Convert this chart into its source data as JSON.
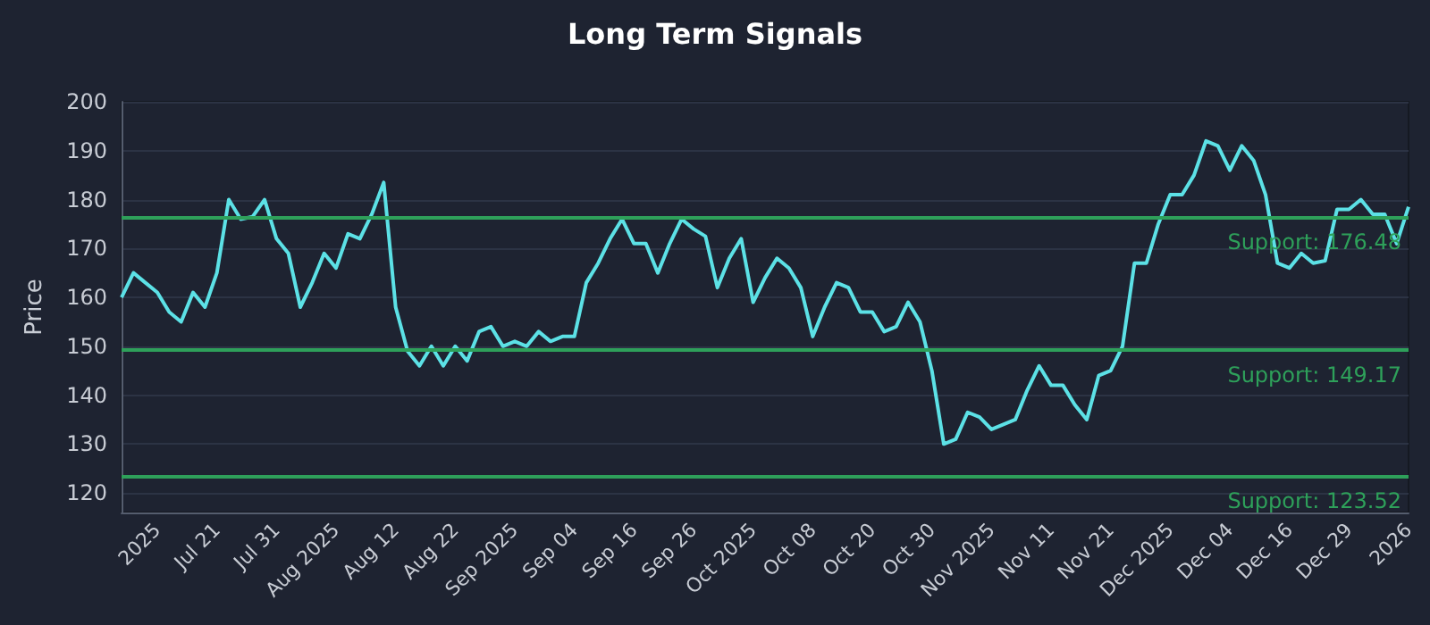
{
  "chart_data": {
    "type": "line",
    "title": "Long Term Signals",
    "ylabel": "Price",
    "categories": [
      null,
      null,
      null,
      "2025",
      null,
      null,
      null,
      null,
      "Jul 21",
      null,
      null,
      null,
      null,
      "Jul 31",
      null,
      null,
      null,
      null,
      "Aug 2025",
      null,
      null,
      null,
      null,
      "Aug 12",
      null,
      null,
      null,
      null,
      "Aug 22",
      null,
      null,
      null,
      null,
      "Sep 2025",
      null,
      null,
      null,
      null,
      "Sep 04",
      null,
      null,
      null,
      null,
      "Sep 16",
      null,
      null,
      null,
      null,
      "Sep 26",
      null,
      null,
      null,
      null,
      "Oct 2025",
      null,
      null,
      null,
      null,
      "Oct 08",
      null,
      null,
      null,
      null,
      "Oct 20",
      null,
      null,
      null,
      null,
      "Oct 30",
      null,
      null,
      null,
      null,
      "Nov 2025",
      null,
      null,
      null,
      null,
      "Nov 11",
      null,
      null,
      null,
      null,
      "Nov 21",
      null,
      null,
      null,
      null,
      "Dec 2025",
      null,
      null,
      null,
      null,
      "Dec 04",
      null,
      null,
      null,
      null,
      "Dec 16",
      null,
      null,
      null,
      null,
      "Dec 29",
      null,
      null,
      null,
      null,
      "2026"
    ],
    "series": [
      {
        "color": "#5ce1e6",
        "values": [
          160,
          165,
          163,
          161,
          157,
          155,
          161,
          158,
          165,
          180,
          176,
          176.5,
          180,
          172,
          169,
          158,
          163,
          169,
          166,
          173,
          172,
          177,
          183.5,
          158,
          149,
          146,
          150,
          146,
          150,
          147,
          153,
          154,
          150,
          151,
          150,
          153,
          151,
          152,
          152,
          163,
          167,
          172,
          176,
          171,
          171,
          165,
          171,
          176,
          174,
          172.5,
          162,
          168,
          172,
          159,
          164,
          168,
          166,
          162,
          152,
          158,
          163,
          162,
          157,
          157,
          153,
          154,
          159,
          155,
          145,
          130,
          131,
          136.5,
          135.5,
          133,
          134,
          135,
          141,
          146,
          142,
          142,
          138,
          135,
          144,
          145,
          150,
          167,
          167,
          175,
          181,
          181,
          185,
          192,
          191,
          186,
          191,
          188,
          181,
          167,
          166,
          169,
          167,
          167.5,
          178,
          178,
          180,
          177,
          177,
          171,
          178.5
        ]
      }
    ],
    "ylim": [
      116,
      200
    ],
    "yticks": [
      120,
      130,
      140,
      150,
      160,
      170,
      180,
      190,
      200
    ],
    "grid": "y",
    "marker": "none",
    "ref_lines": [
      {
        "axis": "y",
        "value": 176.48,
        "label": "Support: 176.48",
        "color": "#2ea05a"
      },
      {
        "axis": "y",
        "value": 149.17,
        "label": "Support: 149.17",
        "color": "#2ea05a"
      },
      {
        "axis": "y",
        "value": 123.52,
        "label": "Support: 123.52",
        "color": "#2ea05a"
      }
    ]
  }
}
